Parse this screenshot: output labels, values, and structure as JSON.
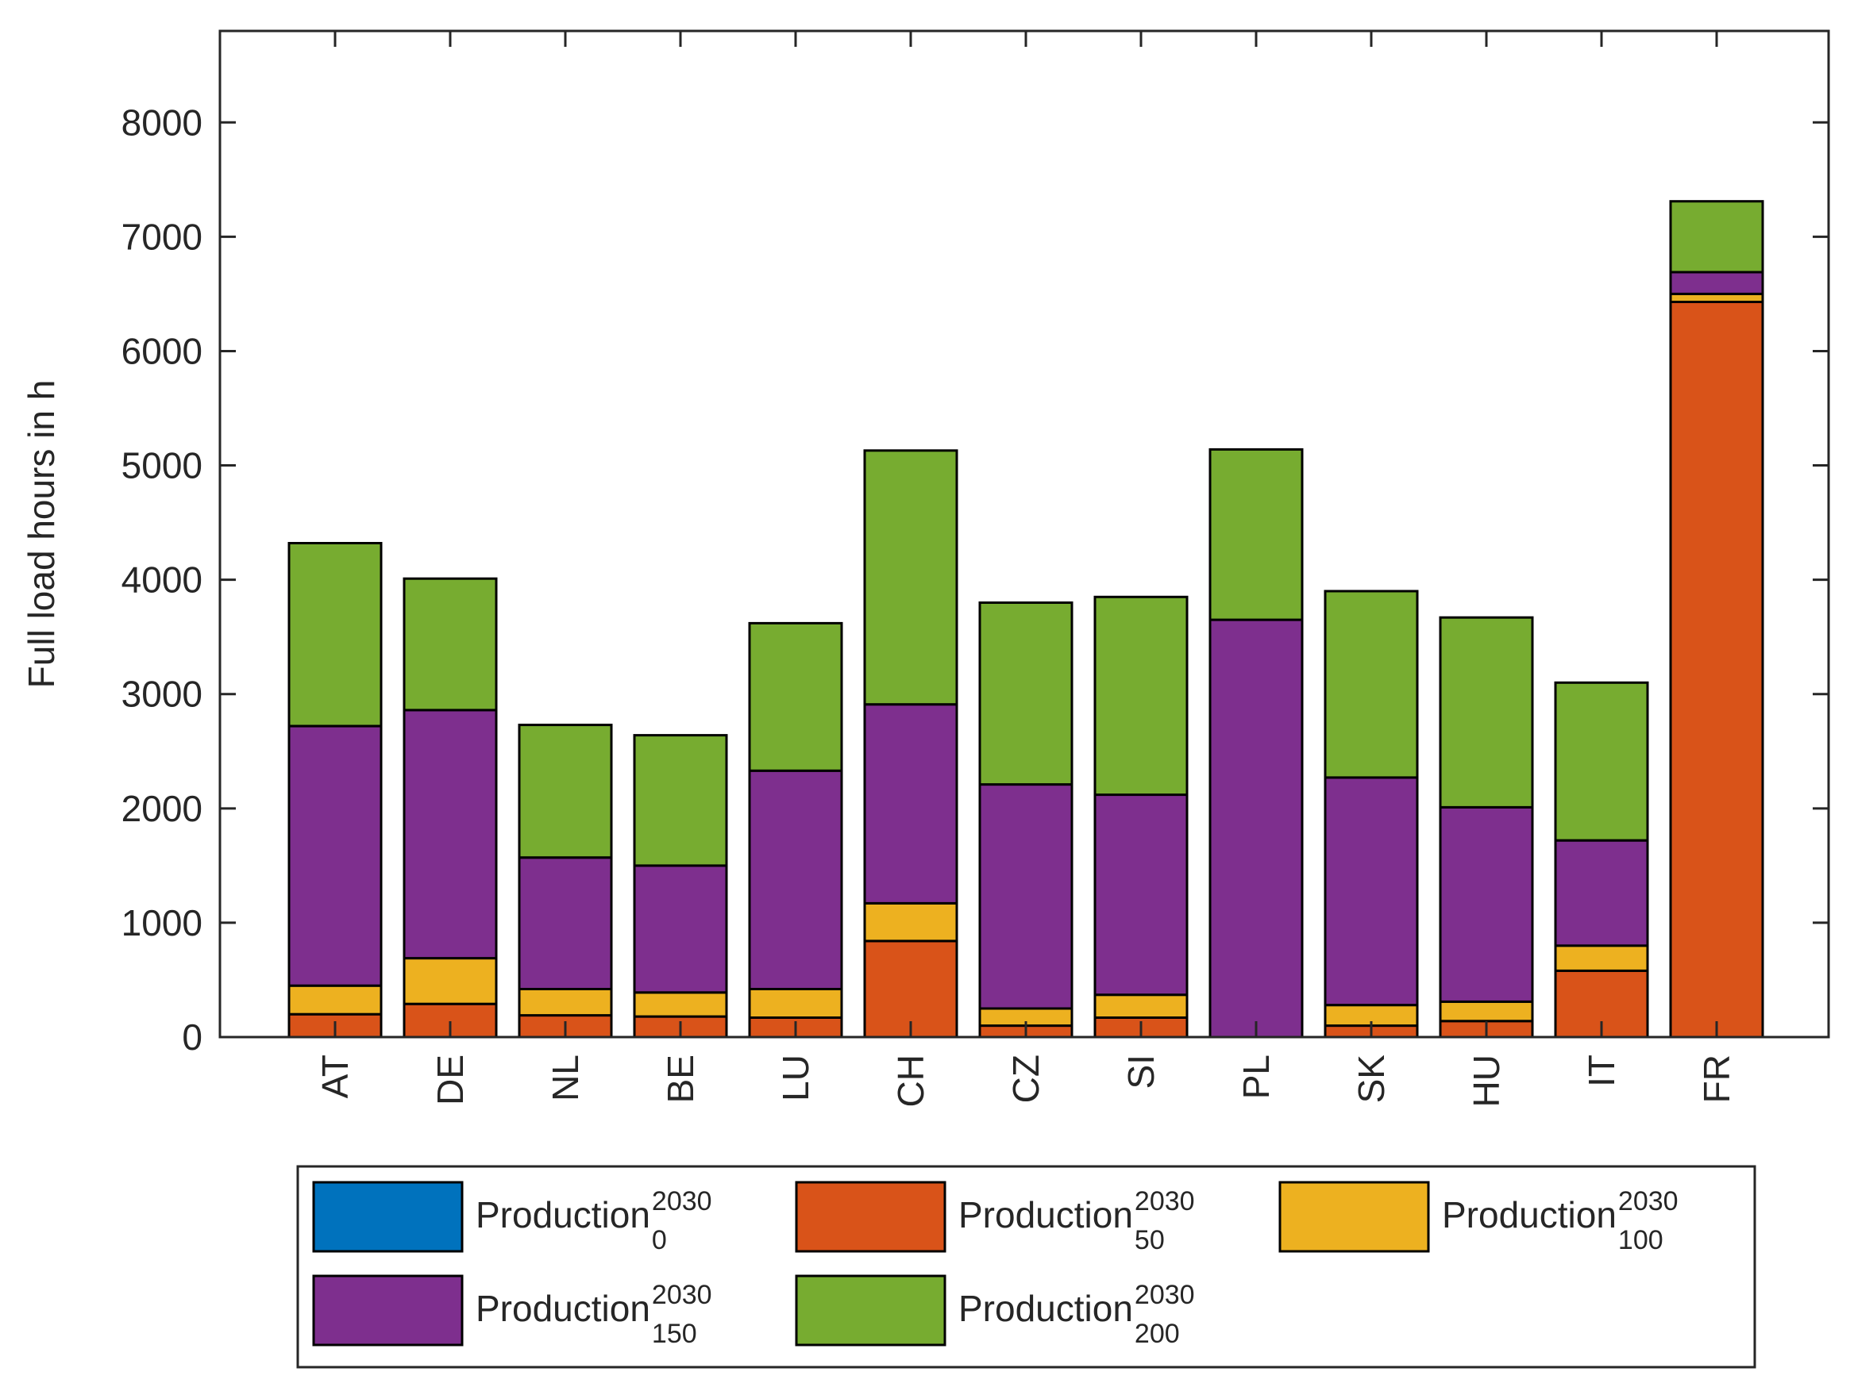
{
  "chart_data": {
    "type": "bar",
    "stacked": true,
    "title": "",
    "xlabel": "",
    "ylabel": "Full load hours in h",
    "ylim": [
      0,
      8800
    ],
    "yticks": [
      0,
      1000,
      2000,
      3000,
      4000,
      5000,
      6000,
      7000,
      8000
    ],
    "ytick_labels": [
      "0",
      "1000",
      "2000",
      "3000",
      "4000",
      "5000",
      "6000",
      "7000",
      "8000"
    ],
    "grid": false,
    "legend_position": "bottom",
    "categories": [
      "AT",
      "DE",
      "NL",
      "BE",
      "LU",
      "CH",
      "CZ",
      "SI",
      "PL",
      "SK",
      "HU",
      "IT",
      "FR"
    ],
    "series": [
      {
        "name": "Production",
        "sup": "2030",
        "sub": "0",
        "color": "#0072BD",
        "values": [
          0,
          0,
          0,
          0,
          0,
          0,
          0,
          0,
          0,
          0,
          0,
          0,
          0
        ]
      },
      {
        "name": "Production",
        "sup": "2030",
        "sub": "50",
        "color": "#D95319",
        "values": [
          200,
          290,
          190,
          180,
          170,
          840,
          100,
          170,
          0,
          100,
          140,
          580,
          6430
        ]
      },
      {
        "name": "Production",
        "sup": "2030",
        "sub": "100",
        "color": "#EDB120",
        "values": [
          250,
          400,
          230,
          210,
          250,
          330,
          150,
          200,
          0,
          180,
          170,
          220,
          70
        ]
      },
      {
        "name": "Production",
        "sup": "2030",
        "sub": "150",
        "color": "#7E2F8E",
        "values": [
          2270,
          2170,
          1150,
          1110,
          1910,
          1740,
          1960,
          1750,
          3650,
          1990,
          1700,
          920,
          190
        ]
      },
      {
        "name": "Production",
        "sup": "2030",
        "sub": "200",
        "color": "#77AC30",
        "values": [
          1600,
          1150,
          1160,
          1140,
          1290,
          2220,
          1590,
          1730,
          1490,
          1630,
          1660,
          1380,
          620
        ]
      }
    ]
  }
}
